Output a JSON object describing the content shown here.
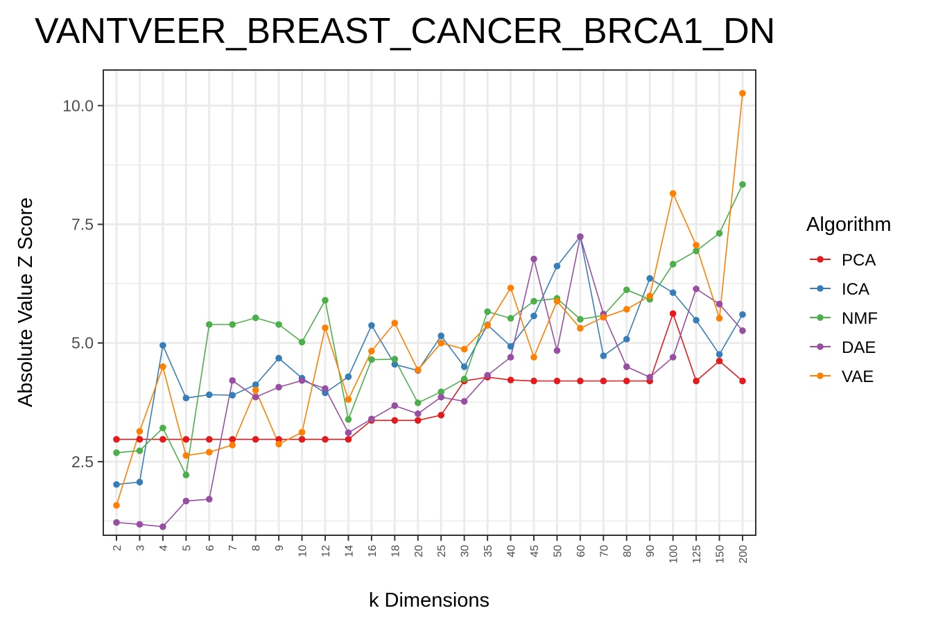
{
  "chart_data": {
    "type": "line",
    "title": "VANTVEER_BREAST_CANCER_BRCA1_DN",
    "xlabel": "k Dimensions",
    "ylabel": "Absolute Value Z Score",
    "categories": [
      "2",
      "3",
      "4",
      "5",
      "6",
      "7",
      "8",
      "9",
      "10",
      "12",
      "14",
      "16",
      "18",
      "20",
      "25",
      "30",
      "35",
      "40",
      "45",
      "50",
      "60",
      "70",
      "80",
      "90",
      "100",
      "125",
      "150",
      "200"
    ],
    "ylim": [
      0.95,
      10.75
    ],
    "yticks": [
      2.5,
      5.0,
      7.5,
      10.0
    ],
    "ytick_labels": [
      "2.5",
      "5.0",
      "7.5",
      "10.0"
    ],
    "grid": true,
    "legend": {
      "title": "Algorithm",
      "position": "right"
    },
    "series": [
      {
        "name": "PCA",
        "color": "#e41a1c",
        "values": [
          2.97,
          2.97,
          2.97,
          2.97,
          2.97,
          2.97,
          2.97,
          2.97,
          2.97,
          2.97,
          2.97,
          3.37,
          3.37,
          3.37,
          3.48,
          4.2,
          4.28,
          4.22,
          4.2,
          4.2,
          4.2,
          4.2,
          4.2,
          4.2,
          5.62,
          4.2,
          4.62,
          4.2
        ]
      },
      {
        "name": "ICA",
        "color": "#377eb8",
        "values": [
          2.02,
          2.07,
          4.95,
          3.84,
          3.91,
          3.9,
          4.12,
          4.68,
          4.26,
          3.95,
          4.29,
          5.37,
          4.55,
          4.42,
          5.15,
          4.5,
          5.38,
          4.93,
          5.57,
          6.62,
          7.24,
          4.73,
          5.08,
          6.36,
          6.06,
          5.48,
          4.76,
          5.6
        ]
      },
      {
        "name": "NMF",
        "color": "#4daf4a",
        "values": [
          2.69,
          2.73,
          3.21,
          2.22,
          5.39,
          5.39,
          5.53,
          5.39,
          5.02,
          5.9,
          3.39,
          4.65,
          4.66,
          3.74,
          3.97,
          4.24,
          5.66,
          5.52,
          5.88,
          5.94,
          5.5,
          5.58,
          6.12,
          5.92,
          6.66,
          6.94,
          7.31,
          8.34
        ]
      },
      {
        "name": "DAE",
        "color": "#984ea3",
        "values": [
          1.22,
          1.18,
          1.13,
          1.67,
          1.71,
          4.21,
          3.86,
          4.07,
          4.21,
          4.04,
          3.11,
          3.4,
          3.68,
          3.51,
          3.86,
          3.77,
          4.32,
          4.7,
          6.77,
          4.84,
          7.24,
          5.61,
          4.5,
          4.28,
          4.7,
          6.14,
          5.82,
          5.26
        ]
      },
      {
        "name": "VAE",
        "color": "#ff7f00",
        "values": [
          1.58,
          3.14,
          4.5,
          2.63,
          2.7,
          2.85,
          4.01,
          2.87,
          3.12,
          5.32,
          3.81,
          4.83,
          5.42,
          4.43,
          5.0,
          4.87,
          5.37,
          6.16,
          4.7,
          5.88,
          5.31,
          5.54,
          5.71,
          5.99,
          8.15,
          7.06,
          5.52,
          10.26
        ]
      }
    ]
  }
}
